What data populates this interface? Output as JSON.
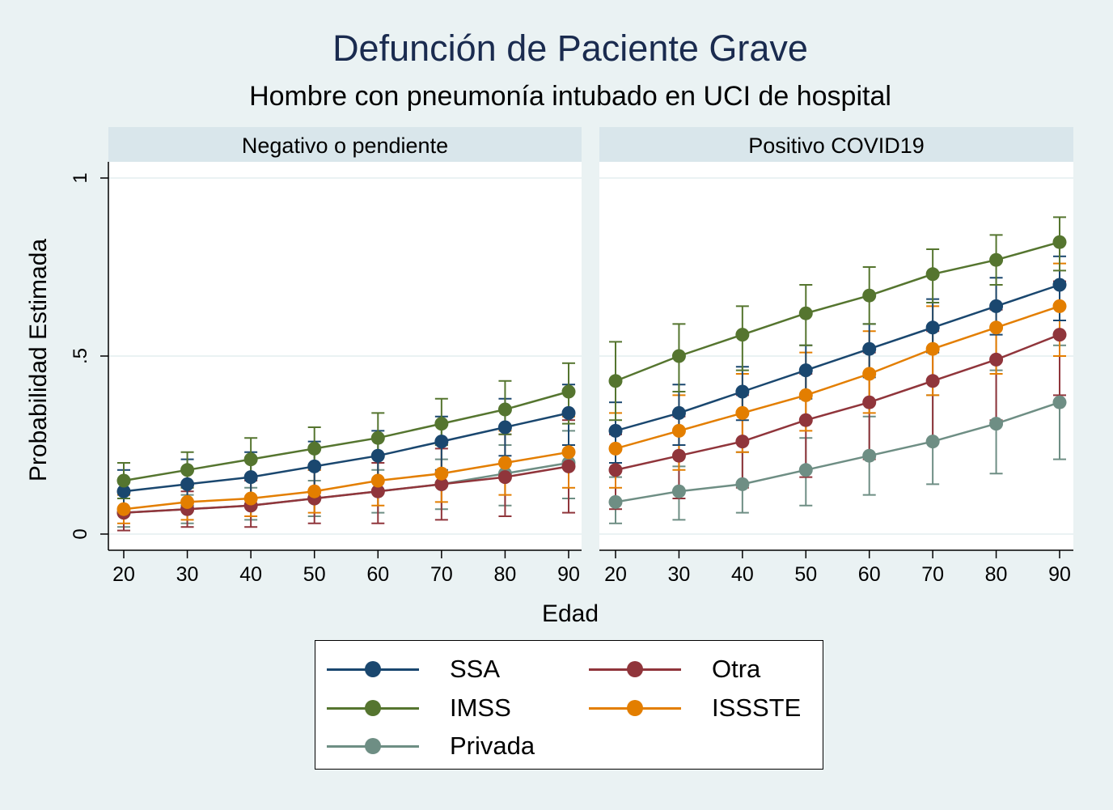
{
  "title": "Defunción de Paciente Grave",
  "subtitle": "Hombre con pneumonía intubado en UCI de hospital",
  "chart_data": {
    "type": "line",
    "title": "Defunción de Paciente Grave",
    "subtitle": "Hombre con pneumonía intubado en UCI de hospital",
    "xlabel": "Edad",
    "ylabel": "Probabilidad Estimada",
    "x": [
      20,
      30,
      40,
      50,
      60,
      70,
      80,
      90
    ],
    "x_ticks": [
      "20",
      "30",
      "40",
      "50",
      "60",
      "70",
      "80",
      "90"
    ],
    "y_ticks": [
      "0",
      ".5",
      "1"
    ],
    "y_tick_values": [
      0,
      0.5,
      1
    ],
    "ylim": [
      0,
      1
    ],
    "grid": true,
    "legend_position": "bottom",
    "error_bars": true,
    "panels": [
      {
        "name": "Negativo o pendiente",
        "series": [
          {
            "name": "SSA",
            "values": [
              0.12,
              0.14,
              0.16,
              0.19,
              0.22,
              0.26,
              0.3,
              0.34
            ],
            "lower": [
              0.07,
              0.08,
              0.1,
              0.12,
              0.15,
              0.18,
              0.22,
              0.25
            ],
            "upper": [
              0.18,
              0.21,
              0.23,
              0.26,
              0.29,
              0.33,
              0.38,
              0.42
            ]
          },
          {
            "name": "IMSS",
            "values": [
              0.15,
              0.18,
              0.21,
              0.24,
              0.27,
              0.31,
              0.35,
              0.4
            ],
            "lower": [
              0.1,
              0.13,
              0.16,
              0.19,
              0.22,
              0.25,
              0.28,
              0.31
            ],
            "upper": [
              0.2,
              0.23,
              0.27,
              0.3,
              0.34,
              0.38,
              0.43,
              0.48
            ]
          },
          {
            "name": "Privada",
            "values": [
              0.06,
              0.07,
              0.08,
              0.1,
              0.12,
              0.14,
              0.17,
              0.2
            ],
            "lower": [
              0.02,
              0.03,
              0.04,
              0.05,
              0.06,
              0.07,
              0.08,
              0.1
            ],
            "upper": [
              0.1,
              0.11,
              0.13,
              0.15,
              0.18,
              0.21,
              0.25,
              0.29
            ]
          },
          {
            "name": "Otra",
            "values": [
              0.06,
              0.07,
              0.08,
              0.1,
              0.12,
              0.14,
              0.16,
              0.19
            ],
            "lower": [
              0.01,
              0.02,
              0.02,
              0.03,
              0.03,
              0.04,
              0.05,
              0.06
            ],
            "upper": [
              0.11,
              0.12,
              0.15,
              0.18,
              0.2,
              0.24,
              0.28,
              0.32
            ]
          },
          {
            "name": "ISSSTE",
            "values": [
              0.07,
              0.09,
              0.1,
              0.12,
              0.15,
              0.17,
              0.2,
              0.23
            ],
            "lower": [
              0.03,
              0.04,
              0.05,
              0.06,
              0.08,
              0.09,
              0.11,
              0.13
            ],
            "upper": [
              0.11,
              0.13,
              0.16,
              0.18,
              0.22,
              0.25,
              0.29,
              0.33
            ]
          }
        ]
      },
      {
        "name": "Positivo COVID19",
        "series": [
          {
            "name": "SSA",
            "values": [
              0.29,
              0.34,
              0.4,
              0.46,
              0.52,
              0.58,
              0.64,
              0.7
            ],
            "lower": [
              0.2,
              0.25,
              0.32,
              0.38,
              0.44,
              0.51,
              0.56,
              0.6
            ],
            "upper": [
              0.37,
              0.42,
              0.47,
              0.53,
              0.59,
              0.66,
              0.72,
              0.78
            ]
          },
          {
            "name": "IMSS",
            "values": [
              0.43,
              0.5,
              0.56,
              0.62,
              0.67,
              0.73,
              0.77,
              0.82
            ],
            "lower": [
              0.32,
              0.4,
              0.46,
              0.53,
              0.59,
              0.65,
              0.7,
              0.74
            ],
            "upper": [
              0.54,
              0.59,
              0.64,
              0.7,
              0.75,
              0.8,
              0.84,
              0.89
            ]
          },
          {
            "name": "Privada",
            "values": [
              0.09,
              0.12,
              0.14,
              0.18,
              0.22,
              0.26,
              0.31,
              0.37
            ],
            "lower": [
              0.03,
              0.04,
              0.06,
              0.08,
              0.11,
              0.14,
              0.17,
              0.21
            ],
            "upper": [
              0.16,
              0.19,
              0.23,
              0.27,
              0.33,
              0.39,
              0.46,
              0.53
            ]
          },
          {
            "name": "Otra",
            "values": [
              0.18,
              0.22,
              0.26,
              0.32,
              0.37,
              0.43,
              0.49,
              0.56
            ],
            "lower": [
              0.07,
              0.1,
              0.13,
              0.16,
              0.21,
              0.26,
              0.32,
              0.39
            ],
            "upper": [
              0.28,
              0.33,
              0.39,
              0.45,
              0.51,
              0.57,
              0.63,
              0.71
            ]
          },
          {
            "name": "ISSSTE",
            "values": [
              0.24,
              0.29,
              0.34,
              0.39,
              0.45,
              0.52,
              0.58,
              0.64
            ],
            "lower": [
              0.13,
              0.18,
              0.23,
              0.29,
              0.34,
              0.39,
              0.45,
              0.5
            ],
            "upper": [
              0.34,
              0.39,
              0.45,
              0.51,
              0.57,
              0.64,
              0.7,
              0.76
            ]
          }
        ]
      }
    ]
  },
  "colors": {
    "SSA": "#1a476f",
    "IMSS": "#55752f",
    "Privada": "#6e8e84",
    "Otra": "#90353b",
    "ISSSTE": "#e37e00",
    "background": "#eaf2f3",
    "panel_header": "#d9e6eb",
    "grid": "#eaf2f3"
  },
  "legend": {
    "items": [
      {
        "label": "SSA"
      },
      {
        "label": "Otra"
      },
      {
        "label": "IMSS"
      },
      {
        "label": "ISSSTE"
      },
      {
        "label": "Privada"
      }
    ]
  }
}
